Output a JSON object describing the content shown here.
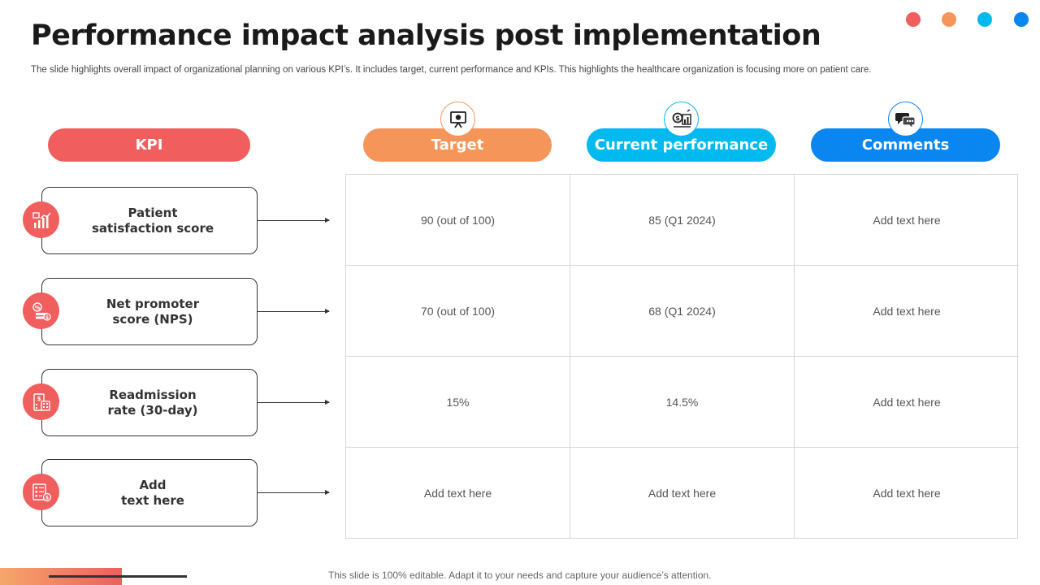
{
  "slide": {
    "title": "Performance impact analysis post implementation",
    "subtitle": "The slide highlights overall impact of organizational planning on various KPI’s. It includes target, current performance and KPIs. This highlights the healthcare organization is focusing more on patient care.",
    "footer": "This slide is 100% editable. Adapt it to your needs and capture your audience’s attention."
  },
  "colors": {
    "kpi": "#f05e5e",
    "target": "#f5955a",
    "current": "#00b9ee",
    "comments": "#0a86f0",
    "dot1": "#f05e5e",
    "dot2": "#f5955a",
    "dot3": "#00b9ee",
    "dot4": "#0a86f0"
  },
  "headers": {
    "kpi": "KPI",
    "target": "Target",
    "current": "Current performance",
    "comments": "Comments"
  },
  "header_icons": {
    "target": "presentation-board-icon",
    "current": "dollar-chart-icon",
    "comments": "chat-bubbles-icon"
  },
  "rows": [
    {
      "kpi": "Patient\nsatisfaction score",
      "icon": "bar-chart-icon",
      "target": "90 (out of 100)",
      "current": "85 (Q1 2024)",
      "comments": "Add text here"
    },
    {
      "kpi": "Net promoter\nscore (NPS)",
      "icon": "percent-money-icon",
      "target": "70 (out of 100)",
      "current": "68 (Q1 2024)",
      "comments": "Add text here"
    },
    {
      "kpi": "Readmission\nrate (30-day)",
      "icon": "calculator-icon",
      "target": "15%",
      "current": "14.5%",
      "comments": "Add text here"
    },
    {
      "kpi": "Add\ntext here",
      "icon": "checklist-icon",
      "target": "Add text here",
      "current": "Add text here",
      "comments": "Add text here"
    }
  ]
}
